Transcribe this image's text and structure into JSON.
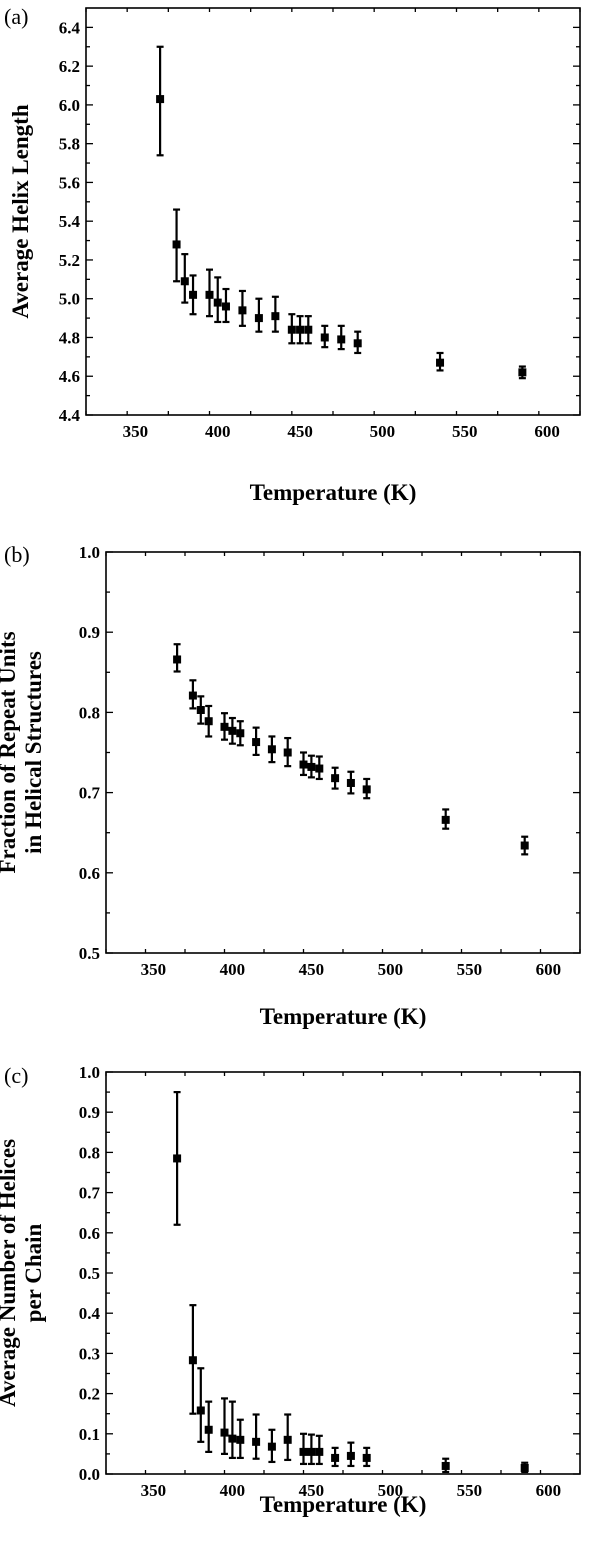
{
  "chart_data": [
    {
      "type": "scatter",
      "panel_label": "(a)",
      "xlabel": "Temperature (K)",
      "ylabel_lines": [
        "Average Helix Length"
      ],
      "xlim": [
        320,
        620
      ],
      "ylim": [
        4.4,
        6.5
      ],
      "xticks": [
        350,
        400,
        450,
        500,
        550,
        600
      ],
      "yticks": [
        4.4,
        4.6,
        4.8,
        5.0,
        5.2,
        5.4,
        5.6,
        5.8,
        6.0,
        6.2,
        6.4
      ],
      "ytick_labels": [
        "4.4",
        "4.6",
        "4.8",
        "5.0",
        "5.2",
        "5.4",
        "5.6",
        "5.8",
        "6.0",
        "6.2",
        "6.4"
      ],
      "xtick_labels": [
        "350",
        "400",
        "450",
        "500",
        "550",
        "600"
      ],
      "points": [
        {
          "x": 365,
          "y": 6.03,
          "lo": 5.74,
          "hi": 6.3
        },
        {
          "x": 375,
          "y": 5.28,
          "lo": 5.09,
          "hi": 5.46
        },
        {
          "x": 380,
          "y": 5.09,
          "lo": 4.98,
          "hi": 5.23
        },
        {
          "x": 385,
          "y": 5.02,
          "lo": 4.92,
          "hi": 5.12
        },
        {
          "x": 395,
          "y": 5.02,
          "lo": 4.91,
          "hi": 5.15
        },
        {
          "x": 400,
          "y": 4.98,
          "lo": 4.88,
          "hi": 5.11
        },
        {
          "x": 405,
          "y": 4.96,
          "lo": 4.88,
          "hi": 5.05
        },
        {
          "x": 415,
          "y": 4.94,
          "lo": 4.86,
          "hi": 5.04
        },
        {
          "x": 425,
          "y": 4.9,
          "lo": 4.83,
          "hi": 5.0
        },
        {
          "x": 435,
          "y": 4.91,
          "lo": 4.83,
          "hi": 5.01
        },
        {
          "x": 445,
          "y": 4.84,
          "lo": 4.77,
          "hi": 4.92
        },
        {
          "x": 450,
          "y": 4.84,
          "lo": 4.77,
          "hi": 4.91
        },
        {
          "x": 455,
          "y": 4.84,
          "lo": 4.77,
          "hi": 4.91
        },
        {
          "x": 465,
          "y": 4.8,
          "lo": 4.75,
          "hi": 4.86
        },
        {
          "x": 475,
          "y": 4.79,
          "lo": 4.74,
          "hi": 4.86
        },
        {
          "x": 485,
          "y": 4.77,
          "lo": 4.72,
          "hi": 4.83
        },
        {
          "x": 535,
          "y": 4.67,
          "lo": 4.63,
          "hi": 4.72
        },
        {
          "x": 585,
          "y": 4.62,
          "lo": 4.59,
          "hi": 4.65
        }
      ]
    },
    {
      "type": "scatter",
      "panel_label": "(b)",
      "xlabel": "Temperature (K)",
      "ylabel_lines": [
        "Fraction of Repeat Units",
        "in Helical Structures"
      ],
      "xlim": [
        320,
        620
      ],
      "ylim": [
        0.5,
        1.0
      ],
      "xticks": [
        350,
        400,
        450,
        500,
        550,
        600
      ],
      "yticks": [
        0.5,
        0.6,
        0.7,
        0.8,
        0.9,
        1.0
      ],
      "ytick_labels": [
        "0.5",
        "0.6",
        "0.7",
        "0.8",
        "0.9",
        "1.0"
      ],
      "xtick_labels": [
        "350",
        "400",
        "450",
        "500",
        "550",
        "600"
      ],
      "points": [
        {
          "x": 365,
          "y": 0.866,
          "lo": 0.851,
          "hi": 0.885
        },
        {
          "x": 375,
          "y": 0.821,
          "lo": 0.805,
          "hi": 0.84
        },
        {
          "x": 380,
          "y": 0.803,
          "lo": 0.786,
          "hi": 0.82
        },
        {
          "x": 385,
          "y": 0.789,
          "lo": 0.77,
          "hi": 0.808
        },
        {
          "x": 395,
          "y": 0.782,
          "lo": 0.766,
          "hi": 0.799
        },
        {
          "x": 400,
          "y": 0.777,
          "lo": 0.761,
          "hi": 0.793
        },
        {
          "x": 405,
          "y": 0.774,
          "lo": 0.759,
          "hi": 0.789
        },
        {
          "x": 415,
          "y": 0.763,
          "lo": 0.747,
          "hi": 0.781
        },
        {
          "x": 425,
          "y": 0.754,
          "lo": 0.738,
          "hi": 0.77
        },
        {
          "x": 435,
          "y": 0.75,
          "lo": 0.733,
          "hi": 0.768
        },
        {
          "x": 445,
          "y": 0.735,
          "lo": 0.722,
          "hi": 0.75
        },
        {
          "x": 450,
          "y": 0.732,
          "lo": 0.719,
          "hi": 0.746
        },
        {
          "x": 455,
          "y": 0.73,
          "lo": 0.717,
          "hi": 0.745
        },
        {
          "x": 465,
          "y": 0.718,
          "lo": 0.705,
          "hi": 0.731
        },
        {
          "x": 475,
          "y": 0.712,
          "lo": 0.699,
          "hi": 0.726
        },
        {
          "x": 485,
          "y": 0.704,
          "lo": 0.693,
          "hi": 0.717
        },
        {
          "x": 535,
          "y": 0.666,
          "lo": 0.655,
          "hi": 0.679
        },
        {
          "x": 585,
          "y": 0.634,
          "lo": 0.623,
          "hi": 0.645
        }
      ]
    },
    {
      "type": "scatter",
      "panel_label": "(c)",
      "xlabel": "Temperature (K)",
      "ylabel_lines": [
        "Average Number of Helices",
        "per Chain"
      ],
      "xlim": [
        320,
        620
      ],
      "ylim": [
        0.0,
        1.0
      ],
      "xticks": [
        350,
        400,
        450,
        500,
        550,
        600
      ],
      "yticks": [
        0.0,
        0.1,
        0.2,
        0.3,
        0.4,
        0.5,
        0.6,
        0.7,
        0.8,
        0.9,
        1.0
      ],
      "ytick_labels": [
        "0.0",
        "0.1",
        "0.2",
        "0.3",
        "0.4",
        "0.5",
        "0.6",
        "0.7",
        "0.8",
        "0.9",
        "1.0"
      ],
      "xtick_labels": [
        "350",
        "400",
        "450",
        "500",
        "550",
        "600"
      ],
      "points": [
        {
          "x": 365,
          "y": 0.785,
          "lo": 0.62,
          "hi": 0.95
        },
        {
          "x": 375,
          "y": 0.283,
          "lo": 0.15,
          "hi": 0.42
        },
        {
          "x": 380,
          "y": 0.158,
          "lo": 0.08,
          "hi": 0.263
        },
        {
          "x": 385,
          "y": 0.11,
          "lo": 0.055,
          "hi": 0.18
        },
        {
          "x": 395,
          "y": 0.103,
          "lo": 0.05,
          "hi": 0.188
        },
        {
          "x": 400,
          "y": 0.088,
          "lo": 0.04,
          "hi": 0.18
        },
        {
          "x": 405,
          "y": 0.085,
          "lo": 0.04,
          "hi": 0.135
        },
        {
          "x": 415,
          "y": 0.08,
          "lo": 0.038,
          "hi": 0.148
        },
        {
          "x": 425,
          "y": 0.068,
          "lo": 0.03,
          "hi": 0.11
        },
        {
          "x": 435,
          "y": 0.085,
          "lo": 0.035,
          "hi": 0.148
        },
        {
          "x": 445,
          "y": 0.055,
          "lo": 0.025,
          "hi": 0.1
        },
        {
          "x": 450,
          "y": 0.055,
          "lo": 0.025,
          "hi": 0.098
        },
        {
          "x": 455,
          "y": 0.055,
          "lo": 0.025,
          "hi": 0.095
        },
        {
          "x": 465,
          "y": 0.04,
          "lo": 0.02,
          "hi": 0.065
        },
        {
          "x": 475,
          "y": 0.045,
          "lo": 0.02,
          "hi": 0.078
        },
        {
          "x": 485,
          "y": 0.04,
          "lo": 0.02,
          "hi": 0.065
        },
        {
          "x": 535,
          "y": 0.02,
          "lo": 0.005,
          "hi": 0.038
        },
        {
          "x": 585,
          "y": 0.015,
          "lo": 0.005,
          "hi": 0.028
        }
      ]
    }
  ]
}
